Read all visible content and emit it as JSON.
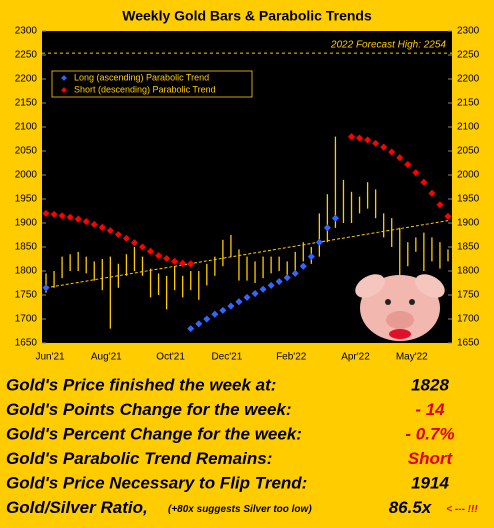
{
  "chart_data": {
    "type": "range_bar",
    "title": "Weekly Gold Bars & Parabolic Trends",
    "categories": [
      "Jun'21",
      null,
      null,
      null,
      null,
      null,
      null,
      "Aug'21",
      null,
      null,
      null,
      null,
      null,
      null,
      null,
      "Oct'21",
      null,
      null,
      null,
      null,
      null,
      null,
      "Dec'21",
      null,
      null,
      null,
      null,
      null,
      null,
      null,
      "Feb'22",
      null,
      null,
      null,
      null,
      null,
      null,
      null,
      "Apr'22",
      null,
      null,
      null,
      null,
      null,
      null,
      "May'22",
      null,
      null,
      null,
      null,
      null
    ],
    "high": [
      1795,
      1800,
      1830,
      1835,
      1840,
      1830,
      1820,
      1825,
      1830,
      1815,
      1835,
      1850,
      1830,
      1805,
      1795,
      1790,
      1810,
      1790,
      1800,
      1800,
      1815,
      1830,
      1865,
      1875,
      1845,
      1830,
      1820,
      1830,
      1830,
      1830,
      1820,
      1840,
      1860,
      1850,
      1920,
      1960,
      2080,
      1990,
      1965,
      1955,
      1985,
      1970,
      1920,
      1910,
      1890,
      1860,
      1870,
      1880,
      1870,
      1860,
      1845
    ],
    "low": [
      1755,
      1765,
      1785,
      1800,
      1800,
      1795,
      1780,
      1760,
      1680,
      1765,
      1790,
      1800,
      1790,
      1745,
      1750,
      1720,
      1760,
      1745,
      1760,
      1740,
      1770,
      1790,
      1810,
      1830,
      1780,
      1780,
      1775,
      1785,
      1795,
      1800,
      1790,
      1800,
      1820,
      1815,
      1830,
      1860,
      1890,
      1900,
      1900,
      1920,
      1930,
      1910,
      1870,
      1850,
      1790,
      1810,
      1840,
      1800,
      1820,
      1805,
      1820
    ],
    "bar_color": "#ffcc00",
    "series": [
      {
        "name": "Long (ascending) Parabolic Trend",
        "color": "#3366ff",
        "values": [
          1765,
          null,
          null,
          null,
          null,
          null,
          null,
          null,
          null,
          null,
          null,
          null,
          null,
          null,
          null,
          null,
          null,
          null,
          1680,
          1690,
          1700,
          1710,
          1718,
          1727,
          1736,
          1745,
          1753,
          1762,
          1770,
          1778,
          1786,
          1795,
          1810,
          1830,
          1860,
          1890,
          1910,
          null,
          null,
          null,
          null,
          null,
          null,
          null,
          null,
          null,
          null,
          null,
          null,
          null,
          null
        ]
      },
      {
        "name": "Short (descending) Parabolic Trend",
        "color": "#ff0000",
        "values": [
          1920,
          1918,
          1915,
          1912,
          1908,
          1903,
          1897,
          1891,
          1884,
          1876,
          1868,
          1859,
          1850,
          1841,
          1832,
          1826,
          1820,
          1816,
          1815,
          null,
          null,
          null,
          null,
          null,
          null,
          null,
          null,
          null,
          null,
          null,
          null,
          null,
          null,
          null,
          null,
          null,
          null,
          null,
          2080,
          2077,
          2073,
          2066,
          2058,
          2048,
          2036,
          2022,
          2005,
          1985,
          1962,
          1938,
          1914
        ]
      }
    ],
    "trend_line": [
      1765,
      1905
    ],
    "forecast_high": {
      "value": 2254,
      "label": "2022 Forecast High: 2254"
    },
    "ylim": [
      1650,
      2300
    ],
    "yticks": [
      1650,
      1700,
      1750,
      1800,
      1850,
      1900,
      1950,
      2000,
      2050,
      2100,
      2150,
      2200,
      2250,
      2300
    ],
    "legend": "upper left"
  },
  "table": {
    "rows": [
      [
        "Gold's Price finished the week at:",
        "1828"
      ],
      [
        "Gold's Points Change for the week:",
        "- 14"
      ],
      [
        "Gold's Percent Change for the week:",
        "- 0.7%"
      ],
      [
        "Gold's Parabolic Trend Remains:",
        "Short"
      ],
      [
        "Gold's Price Necessary to Flip Trend:",
        "1914"
      ]
    ],
    "ratio": {
      "label": "Gold/Silver Ratio,",
      "note": "(+80x suggests Silver too low)",
      "value": "86.5x",
      "flag": "< --- !!!"
    }
  }
}
